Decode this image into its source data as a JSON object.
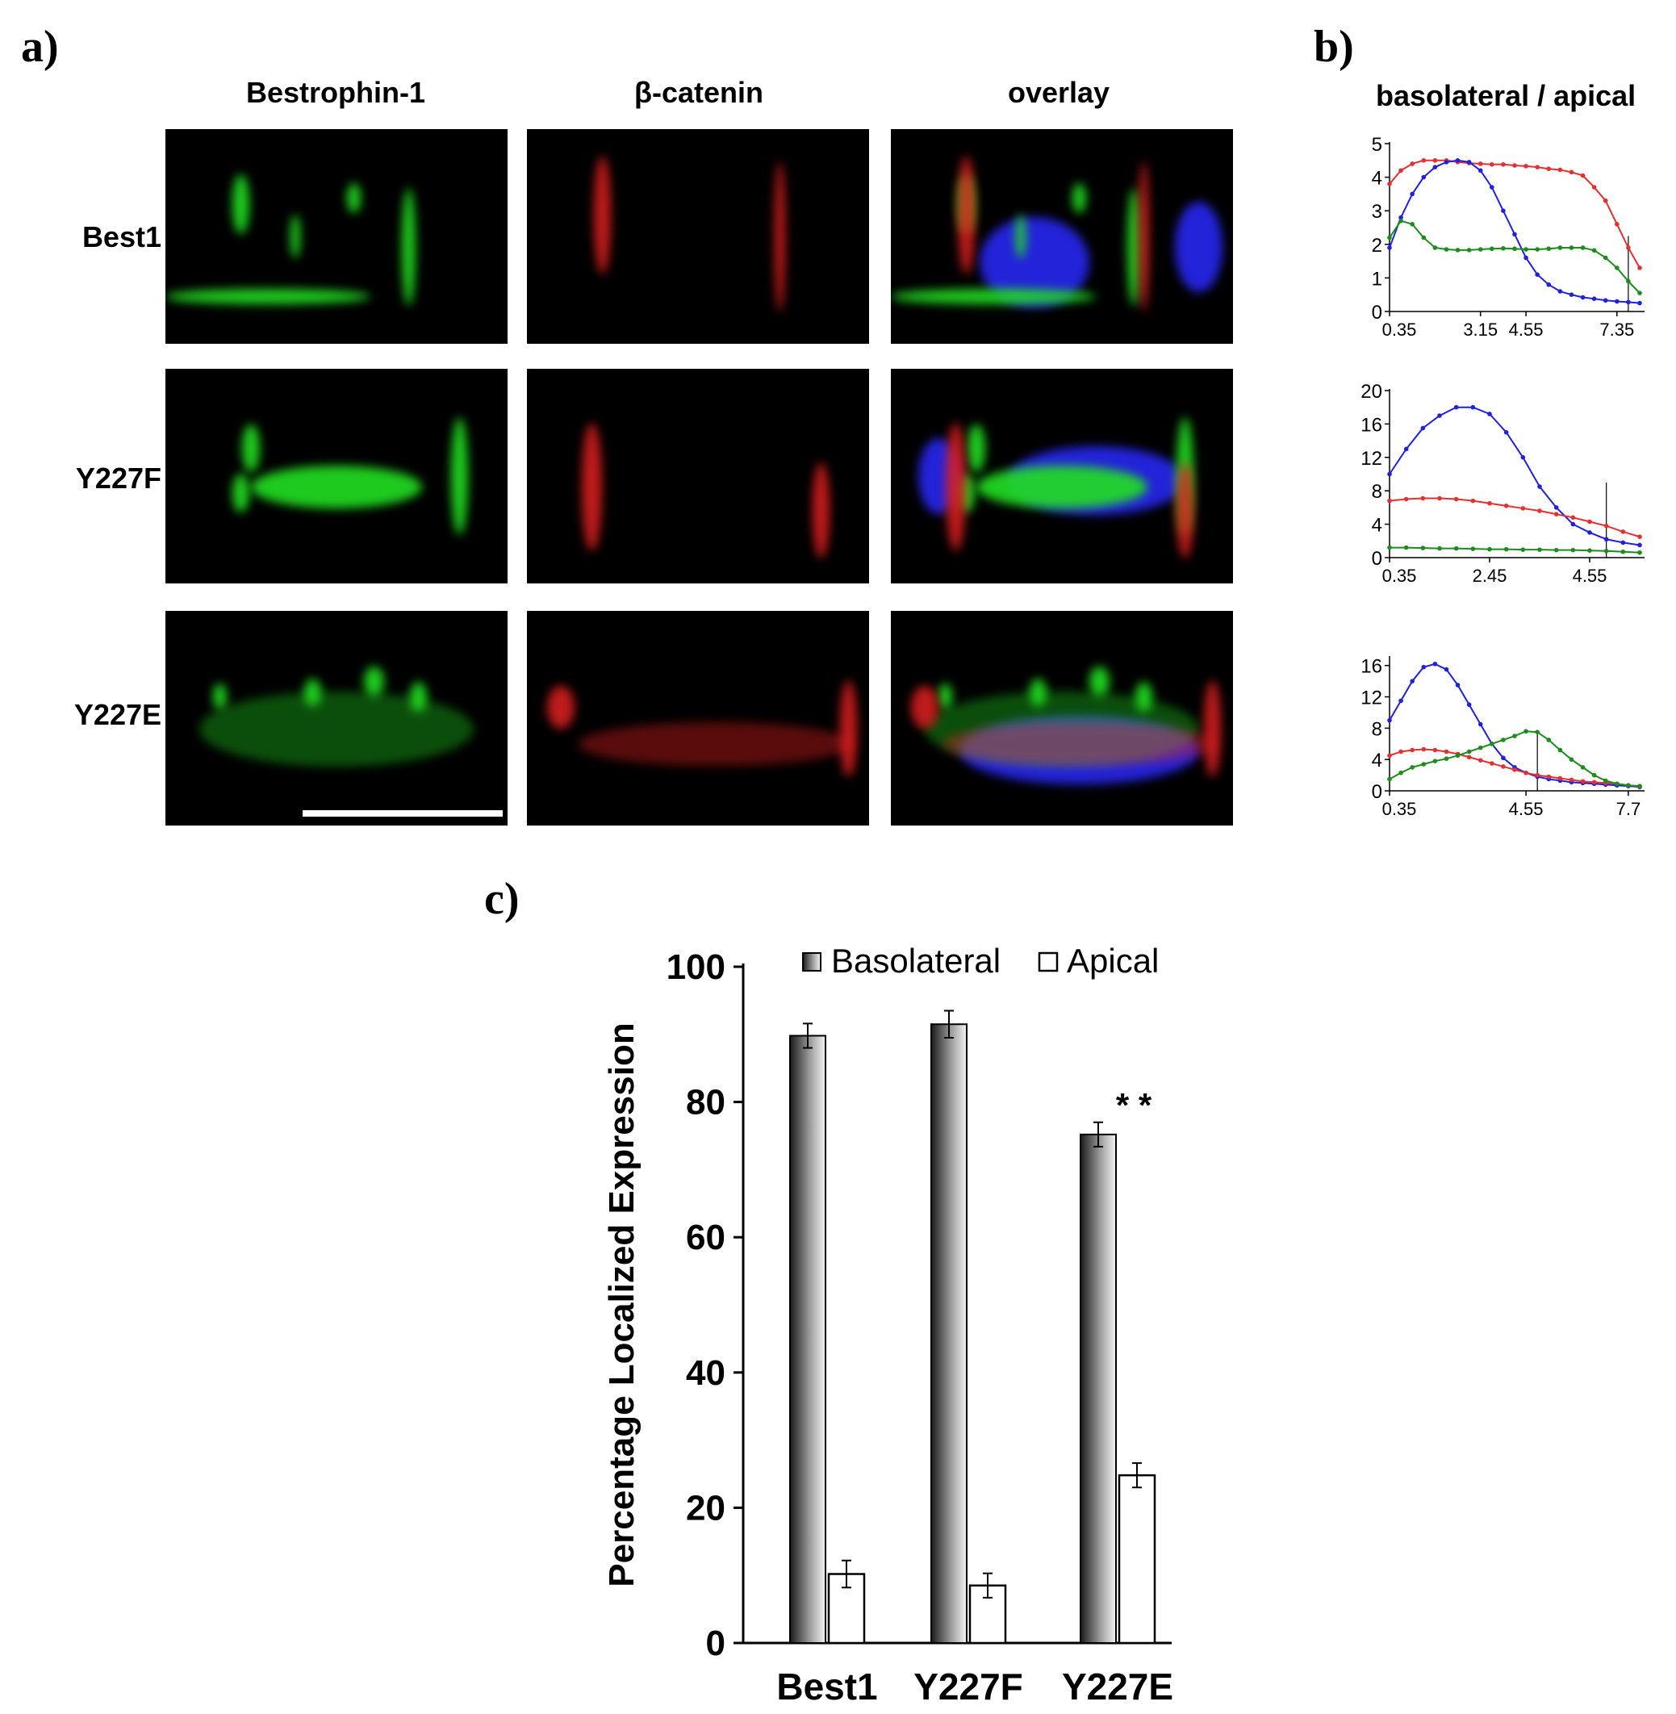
{
  "panels": {
    "a": {
      "letter": "a)"
    },
    "b": {
      "letter": "b)"
    },
    "c": {
      "letter": "c)"
    }
  },
  "micrographs": {
    "columns": [
      "Bestrophin-1",
      "β-catenin",
      "overlay"
    ],
    "rows": [
      "Best1",
      "Y227F",
      "Y227E"
    ]
  },
  "profiles": {
    "title": "basolateral / apical"
  },
  "chart_data": [
    {
      "panel": "b-top",
      "type": "line",
      "ylim": [
        0,
        5
      ],
      "yticks": [
        0,
        1,
        2,
        3,
        4,
        5
      ],
      "xlim": [
        0.35,
        8.05
      ],
      "xticks": [
        "0.35",
        "3.15",
        "4.55",
        "7.35"
      ],
      "xtick_values": [
        0.35,
        3.15,
        4.55,
        7.35
      ],
      "marker_x": 7.7,
      "series": [
        {
          "color": "#e53030",
          "x": [
            0.35,
            0.7,
            1.05,
            1.4,
            1.75,
            2.1,
            2.45,
            2.8,
            3.15,
            3.5,
            3.85,
            4.2,
            4.55,
            4.9,
            5.25,
            5.6,
            5.95,
            6.3,
            6.65,
            7.0,
            7.35,
            7.7,
            8.05
          ],
          "y": [
            3.8,
            4.2,
            4.4,
            4.5,
            4.5,
            4.5,
            4.45,
            4.42,
            4.4,
            4.38,
            4.38,
            4.35,
            4.33,
            4.3,
            4.25,
            4.22,
            4.15,
            4.05,
            3.7,
            3.3,
            2.6,
            1.9,
            1.3
          ]
        },
        {
          "color": "#2020e0",
          "x": [
            0.35,
            0.7,
            1.05,
            1.4,
            1.75,
            2.1,
            2.45,
            2.8,
            3.15,
            3.5,
            3.85,
            4.2,
            4.55,
            4.9,
            5.25,
            5.6,
            5.95,
            6.3,
            6.65,
            7.0,
            7.35,
            7.7,
            8.05
          ],
          "y": [
            1.9,
            2.8,
            3.5,
            4.0,
            4.3,
            4.45,
            4.5,
            4.45,
            4.2,
            3.7,
            3.0,
            2.3,
            1.6,
            1.1,
            0.8,
            0.6,
            0.5,
            0.42,
            0.38,
            0.33,
            0.3,
            0.28,
            0.25
          ]
        },
        {
          "color": "#1c8c1c",
          "x": [
            0.35,
            0.7,
            1.05,
            1.4,
            1.75,
            2.1,
            2.45,
            2.8,
            3.15,
            3.5,
            3.85,
            4.2,
            4.55,
            4.9,
            5.25,
            5.6,
            5.95,
            6.3,
            6.65,
            7.0,
            7.35,
            7.7,
            8.05
          ],
          "y": [
            2.2,
            2.7,
            2.6,
            2.2,
            1.9,
            1.85,
            1.83,
            1.83,
            1.85,
            1.87,
            1.88,
            1.87,
            1.85,
            1.85,
            1.87,
            1.9,
            1.9,
            1.9,
            1.82,
            1.6,
            1.3,
            0.9,
            0.55
          ]
        }
      ]
    },
    {
      "panel": "b-middle",
      "type": "line",
      "ylim": [
        0,
        20
      ],
      "yticks": [
        0,
        4,
        8,
        12,
        16,
        20
      ],
      "xlim": [
        0.35,
        5.6
      ],
      "xticks": [
        "0.35",
        "2.45",
        "4.55"
      ],
      "xtick_values": [
        0.35,
        2.45,
        4.55
      ],
      "marker_x": 4.9,
      "series": [
        {
          "color": "#2020e0",
          "x": [
            0.35,
            0.7,
            1.05,
            1.4,
            1.75,
            2.1,
            2.45,
            2.8,
            3.15,
            3.5,
            3.85,
            4.2,
            4.55,
            4.9,
            5.25,
            5.6
          ],
          "y": [
            10,
            13,
            15.5,
            17,
            18,
            18,
            17.2,
            15,
            12,
            8.5,
            6,
            4,
            3,
            2.2,
            1.8,
            1.5
          ]
        },
        {
          "color": "#e53030",
          "x": [
            0.35,
            0.7,
            1.05,
            1.4,
            1.75,
            2.1,
            2.45,
            2.8,
            3.15,
            3.5,
            3.85,
            4.2,
            4.55,
            4.9,
            5.25,
            5.6
          ],
          "y": [
            6.8,
            7,
            7.1,
            7.1,
            7,
            6.8,
            6.5,
            6.2,
            5.9,
            5.6,
            5.2,
            4.8,
            4.3,
            3.8,
            3.1,
            2.5
          ]
        },
        {
          "color": "#1c8c1c",
          "x": [
            0.35,
            0.7,
            1.05,
            1.4,
            1.75,
            2.1,
            2.45,
            2.8,
            3.15,
            3.5,
            3.85,
            4.2,
            4.55,
            4.9,
            5.25,
            5.6
          ],
          "y": [
            1.2,
            1.2,
            1.15,
            1.1,
            1.1,
            1.05,
            1.0,
            1.0,
            0.95,
            0.95,
            0.9,
            0.9,
            0.85,
            0.8,
            0.7,
            0.6
          ]
        }
      ]
    },
    {
      "panel": "b-bottom",
      "type": "line",
      "ylim": [
        0,
        17
      ],
      "yticks": [
        0,
        4,
        8,
        12,
        16
      ],
      "xlim": [
        0.35,
        8.05
      ],
      "xticks": [
        "0.35",
        "4.55",
        "7.7"
      ],
      "xtick_values": [
        0.35,
        4.55,
        7.7
      ],
      "marker_x": 4.9,
      "series": [
        {
          "color": "#2020e0",
          "x": [
            0.35,
            0.7,
            1.05,
            1.4,
            1.75,
            2.1,
            2.45,
            2.8,
            3.15,
            3.5,
            3.85,
            4.2,
            4.55,
            4.9,
            5.25,
            5.6,
            5.95,
            6.3,
            6.65,
            7.0,
            7.35,
            7.7,
            8.05
          ],
          "y": [
            9,
            11.5,
            14,
            15.8,
            16.2,
            15.5,
            13.5,
            11,
            8.5,
            6,
            4.2,
            3,
            2.3,
            1.8,
            1.5,
            1.3,
            1.1,
            1.0,
            0.9,
            0.8,
            0.7,
            0.6,
            0.5
          ]
        },
        {
          "color": "#e53030",
          "x": [
            0.35,
            0.7,
            1.05,
            1.4,
            1.75,
            2.1,
            2.45,
            2.8,
            3.15,
            3.5,
            3.85,
            4.2,
            4.55,
            4.9,
            5.25,
            5.6,
            5.95,
            6.3,
            6.65,
            7.0,
            7.35,
            7.7,
            8.05
          ],
          "y": [
            4.5,
            5,
            5.2,
            5.3,
            5.2,
            5,
            4.7,
            4.3,
            3.9,
            3.5,
            3.1,
            2.7,
            2.3,
            2.0,
            1.8,
            1.6,
            1.4,
            1.2,
            1.1,
            1.0,
            0.9,
            0.7,
            0.6
          ]
        },
        {
          "color": "#1c8c1c",
          "x": [
            0.35,
            0.7,
            1.05,
            1.4,
            1.75,
            2.1,
            2.45,
            2.8,
            3.15,
            3.5,
            3.85,
            4.2,
            4.55,
            4.9,
            5.25,
            5.6,
            5.95,
            6.3,
            6.65,
            7.0,
            7.35,
            7.7,
            8.05
          ],
          "y": [
            1.5,
            2.3,
            3,
            3.4,
            3.8,
            4.1,
            4.5,
            5,
            5.5,
            6,
            6.5,
            7,
            7.6,
            7.5,
            6.5,
            5.2,
            4,
            3,
            2,
            1.3,
            0.9,
            0.7,
            0.6
          ]
        }
      ]
    },
    {
      "panel": "c",
      "type": "bar",
      "categories": [
        "Best1",
        "Y227F",
        "Y227E"
      ],
      "ylabel": "Percentage Localized Expression",
      "ylim": [
        0,
        100
      ],
      "yticks": [
        0,
        20,
        40,
        60,
        80,
        100
      ],
      "legend": "top",
      "series": [
        {
          "name": "Basolateral",
          "values": [
            89.8,
            91.5,
            75.2
          ],
          "errors": [
            1.8,
            2.0,
            1.8
          ]
        },
        {
          "name": "Apical",
          "values": [
            10.2,
            8.5,
            24.8
          ],
          "errors": [
            2.0,
            1.8,
            1.8
          ]
        }
      ],
      "annotation": "* *",
      "annotation_category": "Y227E"
    }
  ]
}
